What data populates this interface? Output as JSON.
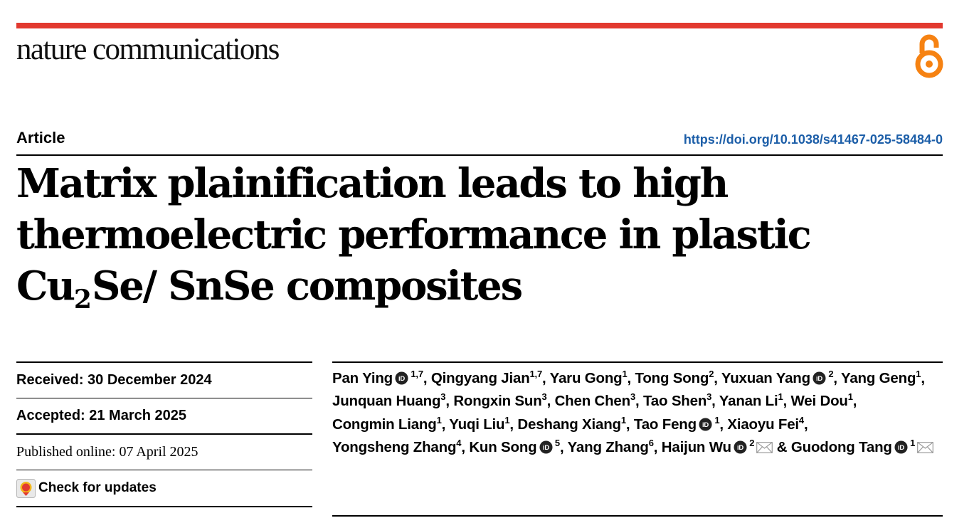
{
  "journal": "nature communications",
  "icons": {
    "open_access": "open-access-icon",
    "orcid": "orcid-icon",
    "email": "email-icon",
    "check_updates": "check-for-updates-icon"
  },
  "colors": {
    "accent_red": "#e2392f",
    "doi_blue": "#1c5ea8",
    "open_access_orange": "#f68212"
  },
  "article_type": "Article",
  "doi": "https://doi.org/10.1038/s41467-025-58484-0",
  "title": {
    "part1": "Matrix plainification leads to high thermoelectric performance in plastic Cu",
    "sub": "2",
    "part2": "Se/ SnSe composites"
  },
  "dates": {
    "received": "Received: 30 December 2024",
    "accepted": "Accepted: 21 March 2025",
    "published": "Published online: 07 April 2025"
  },
  "check_updates": "Check for updates",
  "authors": [
    {
      "name": "Pan Ying",
      "orcid": true,
      "aff": "1,7",
      "sep": ", "
    },
    {
      "name": "Qingyang Jian",
      "orcid": false,
      "aff": "1,7",
      "sep": ", "
    },
    {
      "name": "Yaru Gong",
      "orcid": false,
      "aff": "1",
      "sep": ", "
    },
    {
      "name": "Tong Song",
      "orcid": false,
      "aff": "2",
      "sep": ", "
    },
    {
      "name": "Yuxuan Yang",
      "orcid": true,
      "aff": "2",
      "sep": ", "
    },
    {
      "name": "Yang Geng",
      "orcid": false,
      "aff": "1",
      "sep": ", "
    },
    {
      "name": "Junquan Huang",
      "orcid": false,
      "aff": "3",
      "sep": ", "
    },
    {
      "name": "Rongxin Sun",
      "orcid": false,
      "aff": "3",
      "sep": ", "
    },
    {
      "name": "Chen Chen",
      "orcid": false,
      "aff": "3",
      "sep": ", "
    },
    {
      "name": "Tao Shen",
      "orcid": false,
      "aff": "3",
      "sep": ", "
    },
    {
      "name": "Yanan Li",
      "orcid": false,
      "aff": "1",
      "sep": ", "
    },
    {
      "name": "Wei Dou",
      "orcid": false,
      "aff": "1",
      "sep": ", "
    },
    {
      "name": "Congmin Liang",
      "orcid": false,
      "aff": "1",
      "sep": ", "
    },
    {
      "name": "Yuqi Liu",
      "orcid": false,
      "aff": "1",
      "sep": ", "
    },
    {
      "name": "Deshang Xiang",
      "orcid": false,
      "aff": "1",
      "sep": ", "
    },
    {
      "name": "Tao Feng",
      "orcid": true,
      "aff": "1",
      "sep": ", "
    },
    {
      "name": "Xiaoyu Fei",
      "orcid": false,
      "aff": "4",
      "sep": ", "
    },
    {
      "name": "Yongsheng Zhang",
      "orcid": false,
      "aff": "4",
      "sep": ", "
    },
    {
      "name": "Kun Song",
      "orcid": true,
      "aff": "5",
      "sep": ", "
    },
    {
      "name": "Yang Zhang",
      "orcid": false,
      "aff": "6",
      "sep": ", "
    },
    {
      "name": "Haijun Wu",
      "orcid": true,
      "aff": "2",
      "email": true,
      "sep": " & "
    },
    {
      "name": "Guodong Tang",
      "orcid": true,
      "aff": "1",
      "email": true,
      "sep": ""
    }
  ]
}
